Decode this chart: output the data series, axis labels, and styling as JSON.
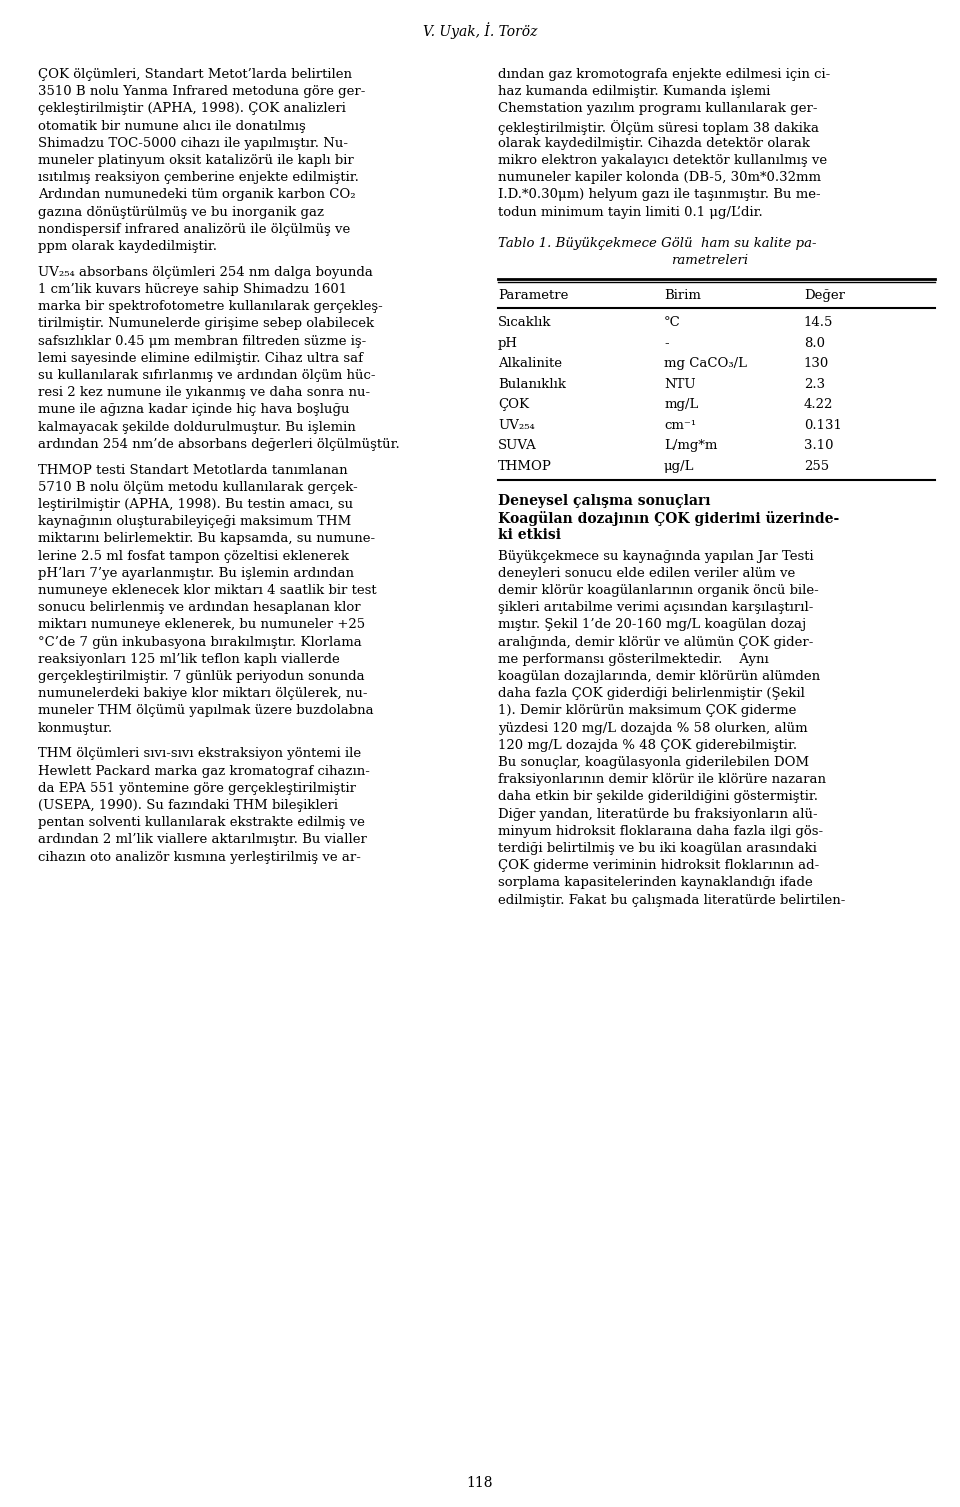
{
  "header": "V. Uyak, İ. Toröz",
  "page_number": "118",
  "bg_color": "#ffffff",
  "text_color": "#000000",
  "left_lines": [
    "ÇOK ölçümleri, Standart Metot’larda belirtilen",
    "3510 B nolu Yanma Infrared metoduna göre ger-",
    "çekleştirilmiştir (APHA, 1998). ÇOK analizleri",
    "otomatik bir numune alıcı ile donatılmış",
    "Shimadzu TOC-5000 cihazı ile yapılmıştır. Nu-",
    "muneler platinyum oksit katalizörü ile kaplı bir",
    "ısıtılmış reaksiyon çemberine enjekte edilmiştir.",
    "Ardından numunedeki tüm organik karbon CO₂",
    "gazına dönüştürülmüş ve bu inorganik gaz",
    "nondispersif infrared analizörü ile ölçülmüş ve",
    "ppm olarak kaydedilmiştir.",
    "",
    "UV₂₅₄ absorbans ölçümleri 254 nm dalga boyunda",
    "1 cm’lik kuvars hücreye sahip Shimadzu 1601",
    "marka bir spektrofotometre kullanılarak gerçekleş-",
    "tirilmiştir. Numunelerde girişime sebep olabilecek",
    "safsızlıklar 0.45 μm membran filtreden süzme iş-",
    "lemi sayesinde elimine edilmiştir. Cihaz ultra saf",
    "su kullanılarak sıfırlanmış ve ardından ölçüm hüc-",
    "resi 2 kez numune ile yıkanmış ve daha sonra nu-",
    "mune ile ağızna kadar içinde hiç hava boşluğu",
    "kalmayacak şekilde doldurulmuştur. Bu işlemin",
    "ardından 254 nm’de absorbans değerleri ölçülmüştür.",
    "",
    "THMOP testi Standart Metotlarda tanımlanan",
    "5710 B nolu ölçüm metodu kullanılarak gerçek-",
    "leştirilmiştir (APHA, 1998). Bu testin amacı, su",
    "kaynağının oluşturabileyiçeği maksimum THM",
    "miktarını belirlemektir. Bu kapsamda, su numune-",
    "lerine 2.5 ml fosfat tampon çözeltisi eklenerek",
    "pH’ları 7’ye ayarlanmıştır. Bu işlemin ardından",
    "numuneye eklenecek klor miktarı 4 saatlik bir test",
    "sonucu belirlenmiş ve ardından hesaplanan klor",
    "miktarı numuneye eklenerek, bu numuneler +25",
    "°C’de 7 gün inkubasyona bırakılmıştır. Klorlama",
    "reaksiyonları 125 ml’lik teflon kaplı viallerde",
    "gerçekleştirilmiştir. 7 günlük periyodun sonunda",
    "numunelerdeki bakiye klor miktarı ölçülerek, nu-",
    "muneler THM ölçümü yapılmak üzere buzdolabna",
    "konmuştur.",
    "",
    "THM ölçümleri sıvı-sıvı ekstraksiyon yöntemi ile",
    "Hewlett Packard marka gaz kromatograf cihazın-",
    "da EPA 551 yöntemine göre gerçekleştirilmiştir",
    "(USEPA, 1990). Su fazındaki THM bileşikleri",
    "pentan solventi kullanılarak ekstrakte edilmiş ve",
    "ardından 2 ml’lik viallere aktarılmıştır. Bu vialler",
    "cihazın oto analizör kısmına yerleştirilmiş ve ar-"
  ],
  "right_lines": [
    "dından gaz kromotografa enjekte edilmesi için ci-",
    "haz kumanda edilmiştir. Kumanda işlemi",
    "Chemstation yazılım programı kullanılarak ger-",
    "çekleştirilmiştir. Ölçüm süresi toplam 38 dakika",
    "olarak kaydedilmiştir. Cihazda detektör olarak",
    "mikro elektron yakalayıcı detektör kullanılmış ve",
    "numuneler kapiler kolonda (DB-5, 30m*0.32mm",
    "I.D.*0.30μm) helyum gazı ile taşınmıştır. Bu me-",
    "todun minimum tayin limiti 0.1 μg/L’dir."
  ],
  "table_title_line1": "Tablo 1. Büyükçekmece Gölü  ham su kalite pa-",
  "table_title_line2": "rametreleri",
  "table_headers": [
    "Parametre",
    "Birim",
    "Değer"
  ],
  "table_data": [
    [
      "Sıcaklık",
      "°C",
      "14.5"
    ],
    [
      "pH",
      "-",
      "8.0"
    ],
    [
      "Alkalinite",
      "mg CaCO₃/L",
      "130"
    ],
    [
      "Bulanıklık",
      "NTU",
      "2.3"
    ],
    [
      "ÇOK",
      "mg/L",
      "4.22"
    ],
    [
      "UV₂₅₄",
      "cm⁻¹",
      "0.131"
    ],
    [
      "SUVA",
      "L/mg*m",
      "3.10"
    ],
    [
      "THMOP",
      "μg/L",
      "255"
    ]
  ],
  "section_heading1": "Deneysel çalışma sonuçları",
  "section_heading2": "Koagülan dozajının ÇOK giderimi üzerinde-",
  "section_heading3": "ki etkisi",
  "bottom_right_lines": [
    "Büyükçekmece su kaynağında yapılan Jar Testi",
    "deneyleri sonucu elde edilen veriler alüm ve",
    "demir klörür koagülanlarının organik öncü bile-",
    "şikleri arıtabilme verimi açısından karşılaştırıl-",
    "mıştır. Şekil 1’de 20-160 mg/L koagülan dozaj",
    "aralığında, demir klörür ve alümün ÇOK gider-",
    "me performansı gösterilmektedir.    Aynı",
    "koagülan dozajlarında, demir klörürün alümden",
    "daha fazla ÇOK giderdiği belirlenmiştir (Şekil",
    "1). Demir klörürün maksimum ÇOK giderme",
    "yüzdesi 120 mg/L dozajda % 58 olurken, alüm",
    "120 mg/L dozajda % 48 ÇOK giderebilmiştir.",
    "Bu sonuçlar, koagülasyonla giderilebilen DOM",
    "fraksiyonlarının demir klörür ile klörüre nazaran",
    "daha etkin bir şekilde giderildiğini göstermiştir.",
    "Diğer yandan, literatürde bu fraksiyonların alü-",
    "minyum hidroksit floklaraına daha fazla ilgi gös-",
    "terdiği belirtilmiş ve bu iki koagülan arasındaki",
    "ÇOK giderme veriminin hidroksit floklarının ad-",
    "sorplama kapasitelerinden kaynaklandığı ifade",
    "edilmiştir. Fakat bu çalışmada literatürde belirtilen-"
  ]
}
